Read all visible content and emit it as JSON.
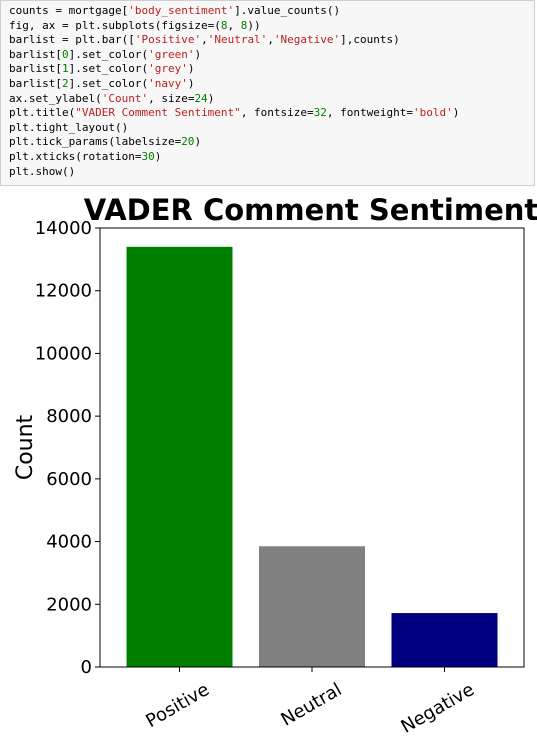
{
  "code": {
    "lines": [
      [
        {
          "t": "counts = mortgage["
        },
        {
          "t": "'body_sentiment'",
          "c": "str"
        },
        {
          "t": "].value_counts()"
        }
      ],
      [
        {
          "t": "fig, ax = plt.subplots(figsize=("
        },
        {
          "t": "8",
          "c": "num"
        },
        {
          "t": ", "
        },
        {
          "t": "8",
          "c": "num"
        },
        {
          "t": "))"
        }
      ],
      [
        {
          "t": "barlist = plt.bar(["
        },
        {
          "t": "'Positive'",
          "c": "str"
        },
        {
          "t": ","
        },
        {
          "t": "'Neutral'",
          "c": "str"
        },
        {
          "t": ","
        },
        {
          "t": "'Negative'",
          "c": "str"
        },
        {
          "t": "],counts)"
        }
      ],
      [
        {
          "t": "barlist["
        },
        {
          "t": "0",
          "c": "num"
        },
        {
          "t": "].set_color("
        },
        {
          "t": "'green'",
          "c": "str"
        },
        {
          "t": ")"
        }
      ],
      [
        {
          "t": "barlist["
        },
        {
          "t": "1",
          "c": "num"
        },
        {
          "t": "].set_color("
        },
        {
          "t": "'grey'",
          "c": "str"
        },
        {
          "t": ")"
        }
      ],
      [
        {
          "t": "barlist["
        },
        {
          "t": "2",
          "c": "num"
        },
        {
          "t": "].set_color("
        },
        {
          "t": "'navy'",
          "c": "str"
        },
        {
          "t": ")"
        }
      ],
      [
        {
          "t": "ax.set_ylabel("
        },
        {
          "t": "'Count'",
          "c": "str"
        },
        {
          "t": ", size="
        },
        {
          "t": "24",
          "c": "num"
        },
        {
          "t": ")"
        }
      ],
      [
        {
          "t": "plt.title("
        },
        {
          "t": "\"VADER Comment Sentiment\"",
          "c": "str"
        },
        {
          "t": ", fontsize="
        },
        {
          "t": "32",
          "c": "num"
        },
        {
          "t": ", fontweight="
        },
        {
          "t": "'bold'",
          "c": "str"
        },
        {
          "t": ")"
        }
      ],
      [
        {
          "t": "plt.tight_layout()"
        }
      ],
      [
        {
          "t": "plt.tick_params(labelsize="
        },
        {
          "t": "20",
          "c": "num"
        },
        {
          "t": ")"
        }
      ],
      [
        {
          "t": "plt.xticks(rotation="
        },
        {
          "t": "30",
          "c": "num"
        },
        {
          "t": ")"
        }
      ],
      [
        {
          "t": "plt.show()"
        }
      ]
    ],
    "colors": {
      "str": "#ba2121",
      "num": "#008000"
    }
  },
  "chart_data": {
    "type": "bar",
    "title": "VADER Comment Sentiment",
    "xlabel": "",
    "ylabel": "Count",
    "categories": [
      "Positive",
      "Neutral",
      "Negative"
    ],
    "values": [
      13400,
      3850,
      1720
    ],
    "colors": [
      "#008000",
      "#808080",
      "#000080"
    ],
    "ylim": [
      0,
      14000
    ],
    "yticks": [
      0,
      2000,
      4000,
      6000,
      8000,
      10000,
      12000,
      14000
    ],
    "xtick_rotation_deg": 30,
    "grid": false
  }
}
